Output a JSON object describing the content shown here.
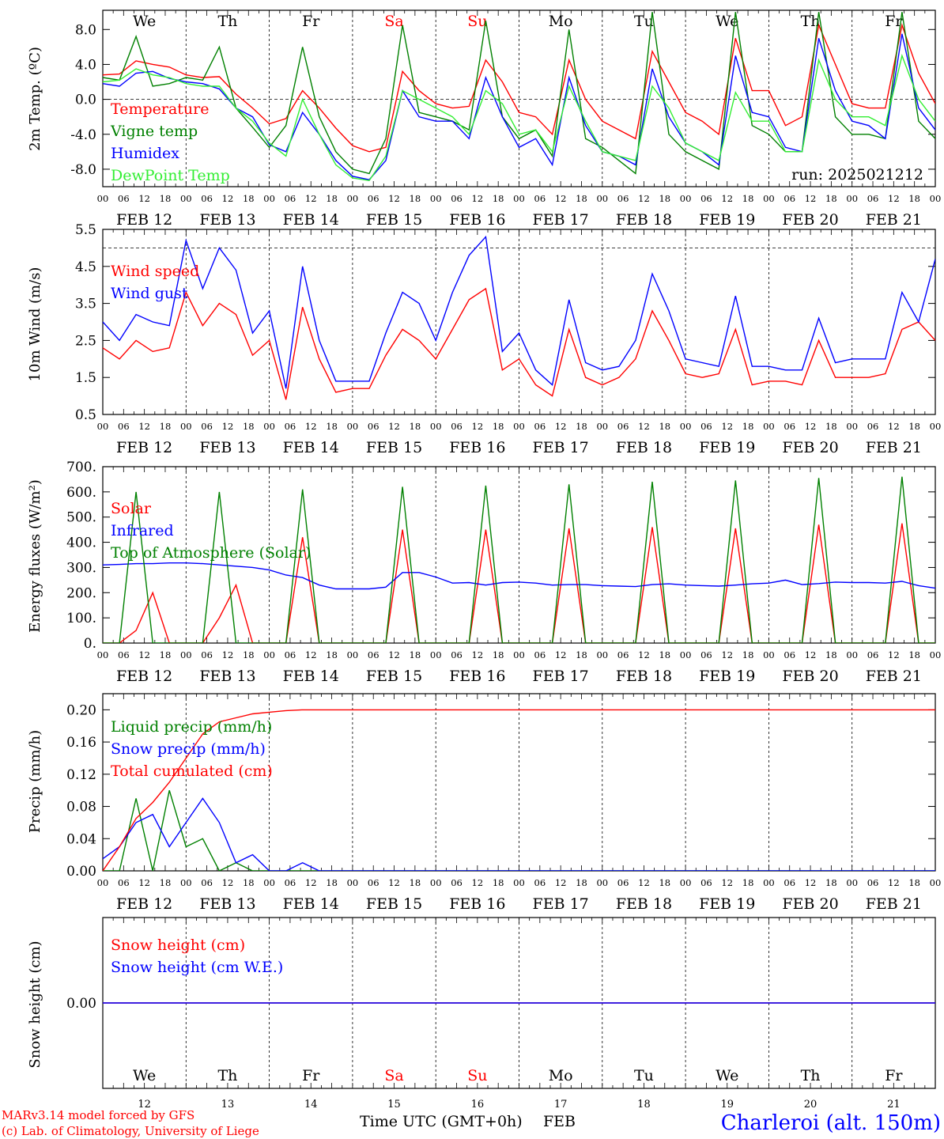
{
  "colors": {
    "red": "#ff0000",
    "dark_green": "#008000",
    "blue": "#0000ff",
    "light_green": "#33ee33",
    "axis": "#000000",
    "dashed_grid": "#000000"
  },
  "footer": {
    "model": "MARv3.14 model forced by GFS",
    "credit": "(c) Lab. of Climatology, University of Liege",
    "time_label": "Time UTC (GMT+0h)",
    "month": "FEB",
    "station": "Charleroi (alt. 150m)"
  },
  "chart_data": [
    {
      "type": "line",
      "ylabel": "2m Temp. (ºC)",
      "ylim": [
        -10.0,
        10.2
      ],
      "yticks": [
        "8.0",
        "4.0",
        "0.0",
        "-4.0",
        "-8.0"
      ],
      "ytick_values": [
        8,
        4,
        0,
        -4,
        -8
      ],
      "zero_line": 0,
      "annotation": "run: 2025021212",
      "weekdays": [
        "We",
        "Th",
        "Fr",
        "Sa",
        "Su",
        "Mo",
        "Tu",
        "We",
        "Th",
        "Fr"
      ],
      "date_labels": [
        "FEB 12",
        "FEB 13",
        "FEB 14",
        "FEB 15",
        "FEB 16",
        "FEB 17",
        "FEB 18",
        "FEB 19",
        "FEB 20",
        "FEB 21"
      ],
      "hour_ticks": [
        "00",
        "06",
        "12",
        "18"
      ],
      "x_start": "2025-02-12 00UTC",
      "x_step_hours": 6,
      "legend": [
        "Temperature",
        "Vigne temp",
        "Humidex",
        "DewPoint Temp"
      ],
      "series": [
        {
          "name": "Temperature",
          "color": "#ff0000",
          "values": [
            2.8,
            2.9,
            4.4,
            4.0,
            3.7,
            2.8,
            2.5,
            2.6,
            0.6,
            -1.0,
            -2.8,
            -2.2,
            1.0,
            -1.0,
            -3.3,
            -5.3,
            -6.0,
            -5.5,
            3.2,
            1.0,
            -0.5,
            -1.0,
            -0.8,
            4.5,
            2.0,
            -1.5,
            -2.0,
            -4.0,
            4.5,
            0.0,
            -2.5,
            -3.5,
            -4.5,
            5.5,
            2.0,
            -1.5,
            -2.5,
            -4.0,
            7.0,
            1.0,
            1.0,
            -3.0,
            -2.0,
            8.5,
            4.0,
            -0.5,
            -1.0,
            -1.0,
            8.5,
            3.0,
            -0.5
          ]
        },
        {
          "name": "Vigne temp",
          "color": "#008000",
          "values": [
            2.5,
            2.2,
            7.2,
            1.5,
            1.8,
            2.5,
            2.2,
            6.0,
            -1.0,
            -3.2,
            -5.5,
            -3.0,
            6.0,
            -2.0,
            -6.0,
            -8.0,
            -8.5,
            -4.5,
            8.5,
            -1.5,
            -2.0,
            -2.5,
            -3.5,
            9.0,
            -2.0,
            -4.5,
            -3.5,
            -6.5,
            8.0,
            -4.5,
            -5.5,
            -7.0,
            -8.5,
            10.0,
            -4.0,
            -6.0,
            -7.0,
            -8.0,
            10.0,
            -3.0,
            -4.0,
            -6.0,
            -6.0,
            10.0,
            -2.0,
            -4.0,
            -4.0,
            -4.5,
            10.0,
            -2.5,
            -4.5
          ]
        },
        {
          "name": "Humidex",
          "color": "#0000ff",
          "values": [
            1.8,
            1.5,
            3.0,
            3.2,
            2.4,
            2.0,
            1.8,
            1.2,
            -1.0,
            -2.0,
            -5.2,
            -6.0,
            -1.5,
            -4.0,
            -7.0,
            -8.8,
            -9.2,
            -7.0,
            1.0,
            -2.0,
            -2.5,
            -2.5,
            -4.5,
            2.5,
            -2.0,
            -5.5,
            -4.5,
            -7.5,
            2.5,
            -3.0,
            -6.0,
            -6.5,
            -7.5,
            3.5,
            -2.0,
            -5.0,
            -6.0,
            -7.5,
            5.0,
            -1.5,
            -2.0,
            -5.5,
            -6.0,
            7.0,
            1.0,
            -2.5,
            -3.0,
            -4.5,
            7.5,
            -1.0,
            -3.5
          ]
        },
        {
          "name": "DewPoint Temp",
          "color": "#33ee33",
          "values": [
            2.0,
            2.2,
            3.5,
            2.8,
            2.5,
            1.8,
            1.5,
            1.5,
            -1.0,
            -2.5,
            -5.0,
            -6.5,
            0.0,
            -4.0,
            -7.5,
            -9.0,
            -9.3,
            -6.5,
            1.0,
            0.0,
            -1.0,
            -2.0,
            -4.0,
            1.0,
            -0.5,
            -4.0,
            -3.5,
            -6.0,
            1.5,
            -2.5,
            -6.0,
            -6.5,
            -7.0,
            1.5,
            -1.0,
            -5.0,
            -6.0,
            -7.0,
            0.8,
            -2.5,
            -2.5,
            -6.0,
            -6.0,
            4.5,
            0.0,
            -2.0,
            -2.0,
            -3.0,
            5.0,
            0.0,
            -2.5
          ]
        }
      ]
    },
    {
      "type": "line",
      "ylabel": "10m Wind (m/s)",
      "ylim": [
        0.5,
        5.5
      ],
      "yticks": [
        "5.5",
        "4.5",
        "3.5",
        "2.5",
        "1.5",
        "0.5"
      ],
      "ytick_values": [
        5.5,
        4.5,
        3.5,
        2.5,
        1.5,
        0.5
      ],
      "dashed_level": 5.0,
      "date_labels": [
        "FEB 12",
        "FEB 13",
        "FEB 14",
        "FEB 15",
        "FEB 16",
        "FEB 17",
        "FEB 18",
        "FEB 19",
        "FEB 20",
        "FEB 21"
      ],
      "hour_ticks": [
        "00",
        "06",
        "12",
        "18"
      ],
      "x_start": "2025-02-12 00UTC",
      "x_step_hours": 6,
      "legend": [
        "Wind speed",
        "Wind gust"
      ],
      "series": [
        {
          "name": "Wind speed",
          "color": "#ff0000",
          "values": [
            2.3,
            2.0,
            2.5,
            2.2,
            2.3,
            3.8,
            2.9,
            3.5,
            3.2,
            2.1,
            2.5,
            0.9,
            3.4,
            2.0,
            1.1,
            1.2,
            1.2,
            2.1,
            2.8,
            2.5,
            2.0,
            2.8,
            3.6,
            3.9,
            1.7,
            2.0,
            1.3,
            1.0,
            2.8,
            1.5,
            1.3,
            1.5,
            2.0,
            3.3,
            2.5,
            1.6,
            1.5,
            1.6,
            2.8,
            1.3,
            1.4,
            1.4,
            1.3,
            2.5,
            1.5,
            1.5,
            1.5,
            1.6,
            2.8,
            3.0,
            2.5
          ]
        },
        {
          "name": "Wind gust",
          "color": "#0000ff",
          "values": [
            3.0,
            2.5,
            3.2,
            3.0,
            2.9,
            5.2,
            3.9,
            5.0,
            4.4,
            2.7,
            3.3,
            1.2,
            4.5,
            2.5,
            1.4,
            1.4,
            1.4,
            2.7,
            3.8,
            3.5,
            2.5,
            3.8,
            4.8,
            5.3,
            2.2,
            2.7,
            1.7,
            1.3,
            3.6,
            1.9,
            1.7,
            1.8,
            2.5,
            4.3,
            3.3,
            2.0,
            1.9,
            1.8,
            3.7,
            1.8,
            1.8,
            1.7,
            1.7,
            3.1,
            1.9,
            2.0,
            2.0,
            2.0,
            3.8,
            3.0,
            4.7
          ]
        }
      ]
    },
    {
      "type": "line",
      "ylabel": "Energy fluxes (W/m²)",
      "ylim": [
        0,
        700
      ],
      "yticks": [
        "700.",
        "600.",
        "500.",
        "400.",
        "300.",
        "200.",
        "100.",
        "0."
      ],
      "ytick_values": [
        700,
        600,
        500,
        400,
        300,
        200,
        100,
        0
      ],
      "date_labels": [
        "FEB 12",
        "FEB 13",
        "FEB 14",
        "FEB 15",
        "FEB 16",
        "FEB 17",
        "FEB 18",
        "FEB 19",
        "FEB 20",
        "FEB 21"
      ],
      "hour_ticks": [
        "00",
        "06",
        "12",
        "18"
      ],
      "x_start": "2025-02-12 00UTC",
      "x_step_hours": 6,
      "legend": [
        "Solar",
        "Infrared",
        "Top of Atmosphere (Solar)"
      ],
      "series": [
        {
          "name": "Solar",
          "color": "#ff0000",
          "values": [
            0,
            0,
            50,
            200,
            0,
            0,
            0,
            100,
            230,
            0,
            0,
            0,
            420,
            0,
            0,
            0,
            0,
            0,
            450,
            0,
            0,
            0,
            0,
            450,
            0,
            0,
            0,
            0,
            455,
            0,
            0,
            0,
            0,
            460,
            0,
            0,
            0,
            0,
            455,
            0,
            0,
            0,
            0,
            470,
            0,
            0,
            0,
            0,
            475,
            0,
            0
          ]
        },
        {
          "name": "Infrared",
          "color": "#0000ff",
          "values": [
            310,
            312,
            315,
            315,
            318,
            318,
            315,
            310,
            305,
            300,
            290,
            270,
            260,
            230,
            215,
            215,
            215,
            222,
            280,
            280,
            262,
            238,
            240,
            230,
            240,
            242,
            238,
            230,
            232,
            232,
            228,
            226,
            224,
            232,
            235,
            230,
            228,
            226,
            230,
            235,
            238,
            250,
            232,
            236,
            242,
            240,
            240,
            238,
            245,
            228,
            218
          ]
        },
        {
          "name": "Top of Atmosphere (Solar)",
          "color": "#008000",
          "values": [
            0,
            0,
            600,
            0,
            0,
            0,
            0,
            600,
            0,
            0,
            0,
            0,
            610,
            0,
            0,
            0,
            0,
            0,
            620,
            0,
            0,
            0,
            0,
            625,
            0,
            0,
            0,
            0,
            630,
            0,
            0,
            0,
            0,
            640,
            0,
            0,
            0,
            0,
            645,
            0,
            0,
            0,
            0,
            655,
            0,
            0,
            0,
            0,
            660,
            0,
            0
          ]
        }
      ]
    },
    {
      "type": "line",
      "ylabel": "Precip (mm/h)",
      "ylim": [
        0.0,
        0.22
      ],
      "yticks": [
        "0.20",
        "0.16",
        "0.12",
        "0.08",
        "0.04",
        "0.00"
      ],
      "ytick_values": [
        0.2,
        0.16,
        0.12,
        0.08,
        0.04,
        0.0
      ],
      "date_labels": [
        "FEB 12",
        "FEB 13",
        "FEB 14",
        "FEB 15",
        "FEB 16",
        "FEB 17",
        "FEB 18",
        "FEB 19",
        "FEB 20",
        "FEB 21"
      ],
      "hour_ticks": [
        "00",
        "06",
        "12",
        "18"
      ],
      "x_start": "2025-02-12 00UTC",
      "x_step_hours": 6,
      "legend": [
        "Liquid precip (mm/h)",
        "Snow precip (mm/h)",
        "Total cumulated (cm)"
      ],
      "series": [
        {
          "name": "Liquid precip (mm/h)",
          "color": "#008000",
          "values": [
            0.0,
            0.0,
            0.09,
            0.0,
            0.1,
            0.03,
            0.04,
            0.0,
            0.01,
            0.0,
            0.0,
            0.0,
            0.0,
            0.0,
            0.0,
            0.0,
            0.0,
            0.0,
            0.0,
            0.0,
            0.0,
            0.0,
            0.0,
            0.0,
            0.0,
            0.0,
            0.0,
            0.0,
            0.0,
            0.0,
            0.0,
            0.0,
            0.0,
            0.0,
            0.0,
            0.0,
            0.0,
            0.0,
            0.0,
            0.0,
            0.0,
            0.0,
            0.0,
            0.0,
            0.0,
            0.0,
            0.0,
            0.0,
            0.0,
            0.0,
            0.0
          ]
        },
        {
          "name": "Snow precip (mm/h)",
          "color": "#0000ff",
          "values": [
            0.015,
            0.03,
            0.06,
            0.07,
            0.03,
            0.06,
            0.09,
            0.06,
            0.01,
            0.02,
            0.0,
            0.0,
            0.01,
            0.0,
            0.0,
            0.0,
            0.0,
            0.0,
            0.0,
            0.0,
            0.0,
            0.0,
            0.0,
            0.0,
            0.0,
            0.0,
            0.0,
            0.0,
            0.0,
            0.0,
            0.0,
            0.0,
            0.0,
            0.0,
            0.0,
            0.0,
            0.0,
            0.0,
            0.0,
            0.0,
            0.0,
            0.0,
            0.0,
            0.0,
            0.0,
            0.0,
            0.0,
            0.0,
            0.0,
            0.0,
            0.0
          ]
        },
        {
          "name": "Total cumulated (cm)",
          "color": "#ff0000",
          "values": [
            0.0,
            0.03,
            0.065,
            0.085,
            0.11,
            0.14,
            0.17,
            0.185,
            0.19,
            0.195,
            0.197,
            0.199,
            0.2,
            0.2,
            0.2,
            0.2,
            0.2,
            0.2,
            0.2,
            0.2,
            0.2,
            0.2,
            0.2,
            0.2,
            0.2,
            0.2,
            0.2,
            0.2,
            0.2,
            0.2,
            0.2,
            0.2,
            0.2,
            0.2,
            0.2,
            0.2,
            0.2,
            0.2,
            0.2,
            0.2,
            0.2,
            0.2,
            0.2,
            0.2,
            0.2,
            0.2,
            0.2,
            0.2,
            0.2,
            0.2,
            0.2
          ]
        }
      ]
    },
    {
      "type": "line",
      "ylabel": "Snow height (cm)",
      "ylim": [
        -1,
        1
      ],
      "yticks": [
        "0.00"
      ],
      "ytick_values": [
        0
      ],
      "weekdays": [
        "We",
        "Th",
        "Fr",
        "Sa",
        "Su",
        "Mo",
        "Tu",
        "We",
        "Th",
        "Fr"
      ],
      "day_numbers": [
        "12",
        "13",
        "14",
        "15",
        "16",
        "17",
        "18",
        "19",
        "20",
        "21"
      ],
      "legend": [
        "Snow height (cm)",
        "Snow height (cm W.E.)"
      ],
      "series": [
        {
          "name": "Snow height (cm)",
          "color": "#ff0000",
          "values": [
            0,
            0
          ]
        },
        {
          "name": "Snow height (cm W.E.)",
          "color": "#0000ff",
          "values": [
            0,
            0
          ]
        }
      ]
    }
  ]
}
